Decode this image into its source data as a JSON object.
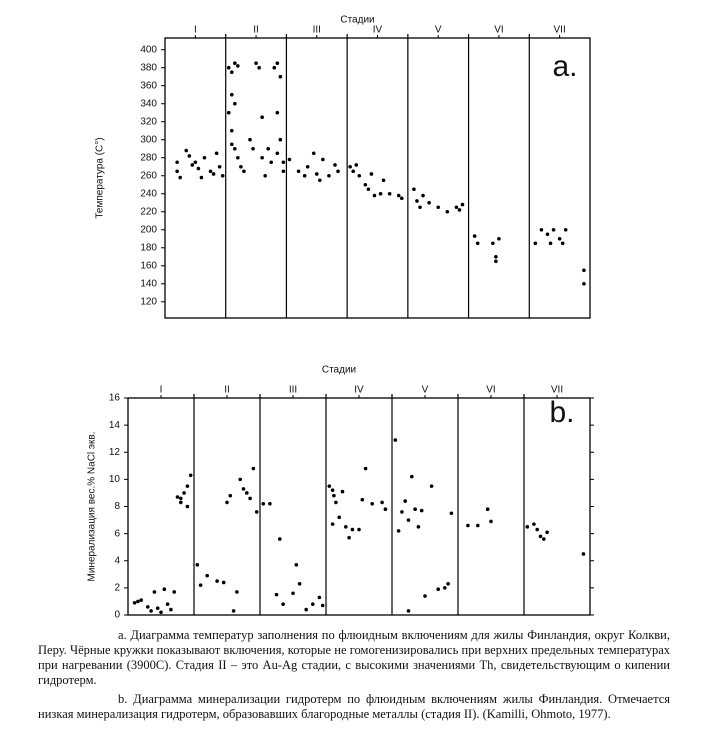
{
  "chart_data": [
    {
      "type": "scatter",
      "title": "Стадии",
      "y_label": "Температура (C°)",
      "annotation": "a.",
      "color": "#000000",
      "xlim": [
        0,
        7
      ],
      "ylim": [
        102,
        413
      ],
      "xticks": [
        {
          "value": 0.5,
          "label": "I"
        },
        {
          "value": 1.5,
          "label": "II"
        },
        {
          "value": 2.5,
          "label": "III"
        },
        {
          "value": 3.5,
          "label": "IV"
        },
        {
          "value": 4.5,
          "label": "V"
        },
        {
          "value": 5.5,
          "label": "VI"
        },
        {
          "value": 6.5,
          "label": "VII"
        }
      ],
      "yticks": [
        120,
        140,
        160,
        180,
        200,
        220,
        240,
        260,
        280,
        300,
        320,
        340,
        360,
        380,
        400
      ],
      "mirror_yticks": false,
      "x": [
        0.2,
        0.2,
        0.25,
        0.35,
        0.4,
        0.45,
        0.55,
        0.6,
        0.65,
        0.75,
        0.8,
        0.85,
        0.9,
        0.95,
        0.5,
        1.05,
        1.1,
        1.15,
        1.2,
        1.1,
        1.15,
        1.05,
        1.1,
        1.1,
        1.15,
        1.2,
        1.25,
        1.3,
        1.4,
        1.45,
        1.5,
        1.55,
        1.6,
        1.6,
        1.65,
        1.7,
        1.75,
        1.8,
        1.85,
        1.85,
        1.9,
        1.9,
        1.95,
        1.95,
        1.85,
        2.05,
        2.2,
        2.3,
        2.35,
        2.45,
        2.5,
        2.55,
        2.6,
        2.7,
        2.8,
        2.85,
        3.05,
        3.1,
        3.15,
        3.2,
        3.3,
        3.35,
        3.4,
        3.45,
        3.55,
        3.6,
        3.7,
        3.85,
        3.9,
        4.1,
        4.15,
        4.2,
        4.25,
        4.35,
        4.5,
        4.65,
        4.8,
        4.85,
        4.9,
        5.1,
        5.15,
        5.4,
        5.5,
        5.45,
        5.45,
        6.1,
        6.2,
        6.3,
        6.35,
        6.4,
        6.5,
        6.55,
        6.6,
        6.9,
        6.9
      ],
      "values": [
        275,
        265,
        258,
        288,
        282,
        272,
        268,
        258,
        280,
        265,
        262,
        285,
        270,
        260,
        275,
        380,
        375,
        385,
        382,
        350,
        340,
        330,
        310,
        295,
        290,
        280,
        270,
        265,
        300,
        290,
        385,
        380,
        325,
        280,
        260,
        290,
        275,
        380,
        385,
        330,
        370,
        300,
        275,
        265,
        285,
        278,
        265,
        260,
        270,
        285,
        262,
        255,
        278,
        260,
        272,
        265,
        270,
        265,
        272,
        260,
        250,
        245,
        262,
        238,
        240,
        255,
        240,
        238,
        235,
        245,
        232,
        225,
        238,
        230,
        225,
        220,
        225,
        222,
        228,
        193,
        185,
        185,
        190,
        170,
        165,
        185,
        200,
        195,
        185,
        200,
        190,
        185,
        200,
        155,
        140
      ]
    },
    {
      "type": "scatter",
      "title": "Стадии",
      "y_label": "Минерализация вес.% NaCl экв.",
      "annotation": "b.",
      "color": "#000000",
      "xlim": [
        0,
        7
      ],
      "ylim": [
        0,
        16
      ],
      "xticks": [
        {
          "value": 0.5,
          "label": "I"
        },
        {
          "value": 1.5,
          "label": "II"
        },
        {
          "value": 2.5,
          "label": "III"
        },
        {
          "value": 3.5,
          "label": "IV"
        },
        {
          "value": 4.5,
          "label": "V"
        },
        {
          "value": 5.5,
          "label": "VI"
        },
        {
          "value": 6.5,
          "label": "VII"
        }
      ],
      "yticks": [
        0,
        2,
        4,
        6,
        8,
        10,
        12,
        14,
        16
      ],
      "mirror_yticks": true,
      "x": [
        0.1,
        0.15,
        0.2,
        0.3,
        0.35,
        0.4,
        0.45,
        0.5,
        0.55,
        0.6,
        0.65,
        0.7,
        0.75,
        0.8,
        0.85,
        0.9,
        0.95,
        0.9,
        0.8,
        1.05,
        1.1,
        1.2,
        1.35,
        1.45,
        1.5,
        1.55,
        1.6,
        1.7,
        1.75,
        1.8,
        1.85,
        1.9,
        1.95,
        1.65,
        2.05,
        2.15,
        2.25,
        2.3,
        2.35,
        2.5,
        2.55,
        2.6,
        2.7,
        2.8,
        2.9,
        2.95,
        3.05,
        3.1,
        3.12,
        3.15,
        3.1,
        3.2,
        3.25,
        3.3,
        3.35,
        3.4,
        3.5,
        3.55,
        3.6,
        3.7,
        3.85,
        3.9,
        4.05,
        4.1,
        4.15,
        4.2,
        4.25,
        4.3,
        4.35,
        4.4,
        4.45,
        4.5,
        4.6,
        4.7,
        4.8,
        4.85,
        4.25,
        4.9,
        5.15,
        5.3,
        5.45,
        5.5,
        6.05,
        6.15,
        6.2,
        6.25,
        6.3,
        6.35,
        6.9
      ],
      "values": [
        0.9,
        1,
        1.1,
        0.6,
        0.3,
        1.7,
        0.5,
        0.2,
        1.9,
        0.8,
        0.4,
        1.7,
        8.7,
        8.3,
        9,
        8,
        10.3,
        9.5,
        8.6,
        3.7,
        2.2,
        2.9,
        2.5,
        2.4,
        8.3,
        8.8,
        0.3,
        10,
        9.3,
        9,
        8.6,
        10.8,
        7.6,
        1.7,
        8.2,
        8.2,
        1.5,
        5.6,
        0.8,
        1.6,
        3.7,
        2.3,
        0.4,
        0.8,
        1.3,
        0.7,
        9.5,
        9.2,
        8.8,
        8.3,
        6.7,
        7.2,
        9.1,
        6.5,
        5.7,
        6.3,
        6.3,
        8.5,
        10.8,
        8.2,
        8.3,
        7.8,
        12.9,
        6.2,
        7.6,
        8.4,
        7,
        10.2,
        7.8,
        6.5,
        7.7,
        1.4,
        9.5,
        1.9,
        2,
        2.3,
        0.3,
        7.5,
        6.6,
        6.6,
        7.8,
        6.9,
        6.5,
        6.7,
        6.3,
        5.8,
        5.6,
        6.1,
        4.5
      ]
    }
  ],
  "caption": [
    "a. Диаграмма температур заполнения по флюидным включениям для жилы Финландия, округ Колкви, Перу. Чёрные кружки показывают включения, которые не гомогенизировались при верхних предельных температурах при нагревании (3900С). Стадия II – это Au-Ag стадии, с высокими значениями Th, свидетельствующим о кипении гидротерм.",
    "b. Диаграмма минерализации гидротерм по флюидным включениям жилы Финландия. Отмечается низкая минерализация гидротерм, образовавших благородные металлы (стадия II). (Kamilli, Ohmoto, 1977)."
  ]
}
